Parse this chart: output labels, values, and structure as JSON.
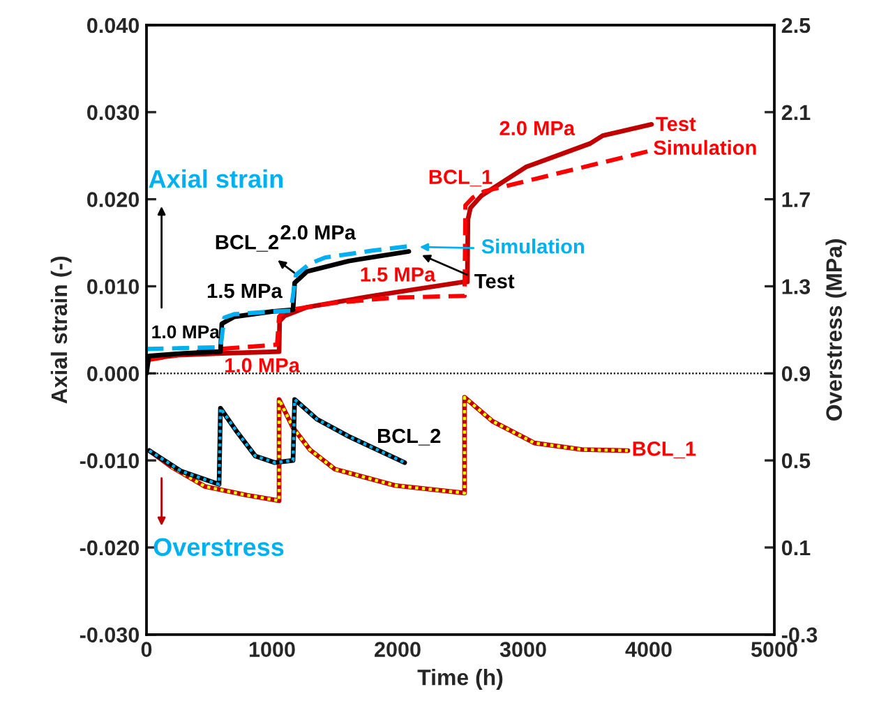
{
  "chart_data": {
    "type": "line",
    "xlabel": "Time (h)",
    "ylabel": "Axial strain (-)",
    "y2label": "Overstress (MPa)",
    "xlim": [
      0,
      5000
    ],
    "xticks": [
      0,
      1000,
      2000,
      3000,
      4000,
      5000
    ],
    "ylim": [
      -0.03,
      0.04
    ],
    "yticks": [
      {
        "value": -0.03,
        "label": "-0.030"
      },
      {
        "value": -0.02,
        "label": "-0.020"
      },
      {
        "value": -0.01,
        "label": "-0.010"
      },
      {
        "value": 0,
        "label": "0.000"
      },
      {
        "value": 0.01,
        "label": "0.010"
      },
      {
        "value": 0.02,
        "label": "0.020"
      },
      {
        "value": 0.03,
        "label": "0.030"
      },
      {
        "value": 0.04,
        "label": "0.040"
      }
    ],
    "y2lim": [
      -0.3,
      2.5
    ],
    "y2ticks": [
      -0.3,
      0.1,
      0.5,
      0.9,
      1.3,
      1.7,
      2.1,
      2.5
    ],
    "grid": false,
    "legend": false,
    "ref_lines": [
      {
        "axis": "y",
        "value": 0,
        "color": "#000000",
        "line_style": "dotted"
      }
    ],
    "series": [
      {
        "color": "#c00000",
        "line_style": "solid",
        "x": [
          0,
          22,
          250,
          600,
          1056,
          1060,
          1100,
          1278,
          1800,
          2522,
          2555,
          2560,
          2580,
          2667,
          3022,
          3533,
          3633,
          4022
        ],
        "values": [
          0.001,
          0.0017,
          0.0021,
          0.0023,
          0.0025,
          0.006,
          0.0066,
          0.0076,
          0.0089,
          0.0105,
          0.0105,
          0.0177,
          0.019,
          0.0204,
          0.0237,
          0.0264,
          0.0273,
          0.0286
        ]
      },
      {
        "color": "#ff0000",
        "line_style": "dashed",
        "x": [
          0,
          500,
          1040,
          1056,
          1100,
          1500,
          1978,
          2533,
          2540,
          2600,
          2689,
          4022
        ],
        "values": [
          0.0015,
          0.0027,
          0.0033,
          0.0065,
          0.0072,
          0.0081,
          0.0087,
          0.0089,
          0.0193,
          0.0202,
          0.0209,
          0.0256
        ]
      },
      {
        "color": "#000000",
        "line_style": "solid",
        "x": [
          0,
          20,
          300,
          589,
          600,
          700,
          1000,
          1167,
          1180,
          1278,
          1611,
          2089
        ],
        "values": [
          0.0,
          0.002,
          0.0023,
          0.0025,
          0.0057,
          0.0065,
          0.0071,
          0.0073,
          0.0104,
          0.0117,
          0.0129,
          0.014
        ]
      },
      {
        "color": "#00b0f0",
        "line_style": "dashed",
        "x": [
          0,
          300,
          589,
          620,
          700,
          1000,
          1150,
          1190,
          1300,
          1422,
          1800,
          2089
        ],
        "values": [
          0.0028,
          0.0029,
          0.003,
          0.0064,
          0.0068,
          0.0071,
          0.0072,
          0.0113,
          0.0126,
          0.0133,
          0.0141,
          0.0146
        ]
      },
      {
        "color": "#c00000",
        "line_style": "solid",
        "axis": "y2",
        "x": [
          22,
          200,
          467,
          800,
          1056,
          1056,
          1167,
          1300,
          1500,
          1978,
          2533,
          2533,
          2756,
          3089,
          3467,
          3833
        ],
        "values": [
          0.545,
          0.47,
          0.38,
          0.34,
          0.315,
          0.78,
          0.65,
          0.55,
          0.46,
          0.385,
          0.35,
          0.79,
          0.68,
          0.58,
          0.55,
          0.545
        ]
      },
      {
        "color": "#ffff00",
        "line_style": "dotted",
        "axis": "y2",
        "x": [
          200,
          467,
          800,
          1056,
          1056,
          1167,
          1300,
          1500,
          1978,
          2533,
          2533,
          2756,
          3089,
          3467,
          3833
        ],
        "values": [
          0.47,
          0.38,
          0.34,
          0.315,
          0.78,
          0.65,
          0.55,
          0.46,
          0.385,
          0.35,
          0.79,
          0.68,
          0.58,
          0.55,
          0.545
        ]
      },
      {
        "color": "#000000",
        "line_style": "solid",
        "axis": "y2",
        "x": [
          22,
          278,
          578,
          589,
          722,
          867,
          1022,
          1167,
          1180,
          1356,
          1611,
          2056
        ],
        "values": [
          0.545,
          0.45,
          0.39,
          0.74,
          0.63,
          0.52,
          0.49,
          0.5,
          0.78,
          0.69,
          0.61,
          0.49
        ]
      },
      {
        "color": "#00b0f0",
        "line_style": "dotted",
        "axis": "y2",
        "x": [
          22,
          278,
          578,
          589,
          722,
          867,
          1022,
          1167,
          1180,
          1356,
          1611,
          2056
        ],
        "values": [
          0.545,
          0.45,
          0.39,
          0.74,
          0.63,
          0.52,
          0.49,
          0.5,
          0.78,
          0.69,
          0.61,
          0.49
        ]
      }
    ],
    "annotations": [
      "Axial strain",
      "Overstress",
      "BCL_2",
      "2.0 MPa",
      "1.5 MPa",
      "1.0 MPa",
      "1.0 MPa",
      "1.5 MPa",
      "Simulation",
      "Test",
      "2.0 MPa",
      "Test",
      "Simulation",
      "BCL_1",
      "BCL_2",
      "BCL_1"
    ]
  }
}
